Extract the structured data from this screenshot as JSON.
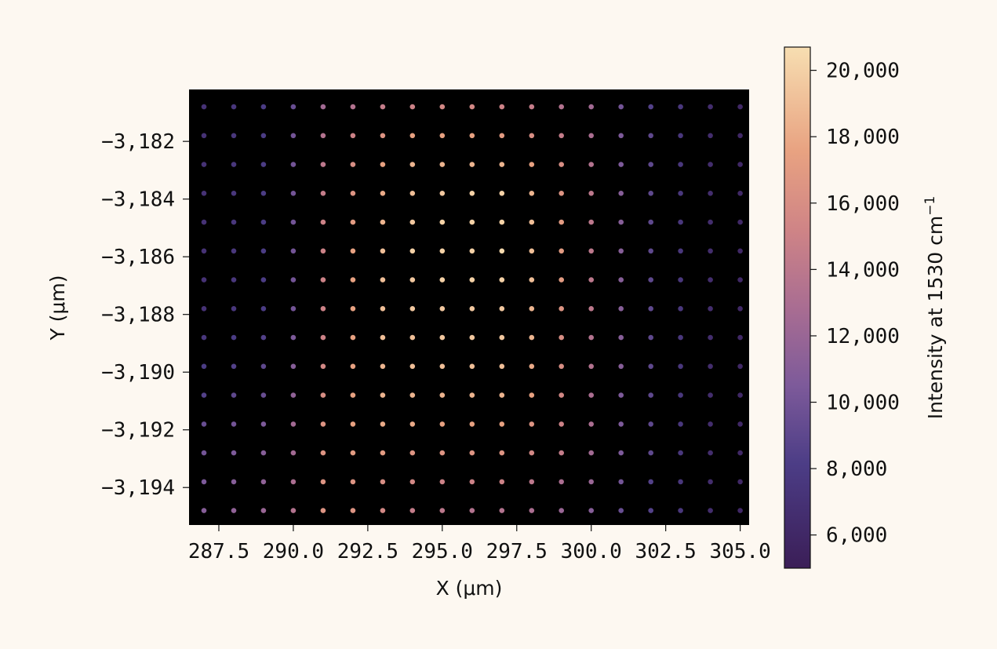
{
  "chart_data": {
    "type": "scatter",
    "title": "",
    "xlabel": "X (μm)",
    "ylabel": "Y (μm)",
    "colorbar_label": "Intensity at 1530 cm",
    "colorbar_label_sup": "−1",
    "colormap": "magma",
    "background": "#000000",
    "xlim": [
      286.5,
      305.3
    ],
    "ylim": [
      -3195.3,
      -3180.2
    ],
    "x_ticks": [
      287.5,
      290.0,
      292.5,
      295.0,
      297.5,
      300.0,
      302.5,
      305.0
    ],
    "x_tick_labels": [
      "287.5",
      "290.0",
      "292.5",
      "295.0",
      "297.5",
      "300.0",
      "302.5",
      "305.0"
    ],
    "y_ticks": [
      -3182,
      -3184,
      -3186,
      -3188,
      -3190,
      -3192,
      -3194
    ],
    "y_tick_labels": [
      "−3,182",
      "−3,184",
      "−3,186",
      "−3,188",
      "−3,190",
      "−3,192",
      "−3,194"
    ],
    "clim": [
      5000,
      20700
    ],
    "colorbar_ticks": [
      6000,
      8000,
      10000,
      12000,
      14000,
      16000,
      18000,
      20000
    ],
    "colorbar_tick_labels": [
      "6,000",
      "8,000",
      "10,000",
      "12,000",
      "14,000",
      "16,000",
      "18,000",
      "20,000"
    ],
    "grid": false,
    "x": [
      287.0,
      288.0,
      289.0,
      290.0,
      291.0,
      292.0,
      293.0,
      294.0,
      295.0,
      296.0,
      297.0,
      298.0,
      299.0,
      300.0,
      301.0,
      302.0,
      303.0,
      304.0,
      305.0
    ],
    "y": [
      -3180.8,
      -3181.8,
      -3182.8,
      -3183.8,
      -3184.8,
      -3185.8,
      -3186.8,
      -3187.8,
      -3188.8,
      -3189.8,
      -3190.8,
      -3191.8,
      -3192.8,
      -3193.8,
      -3194.8
    ],
    "values": [
      [
        7000,
        7500,
        8000,
        9500,
        12500,
        13500,
        14500,
        15000,
        15500,
        15500,
        15000,
        14500,
        13500,
        12500,
        10000,
        8500,
        7500,
        6500,
        6000
      ],
      [
        7000,
        7500,
        8000,
        10000,
        13500,
        15000,
        16500,
        17500,
        17500,
        17500,
        17000,
        16000,
        14500,
        13000,
        10500,
        9000,
        7500,
        6500,
        6000
      ],
      [
        7000,
        7500,
        8000,
        10000,
        14000,
        16000,
        17500,
        18500,
        18500,
        18500,
        18500,
        17500,
        16000,
        13500,
        10500,
        9000,
        7500,
        6500,
        6000
      ],
      [
        7000,
        7500,
        8000,
        10000,
        14500,
        16500,
        18000,
        19000,
        19500,
        20000,
        20000,
        18500,
        16500,
        14000,
        11000,
        9000,
        7500,
        6500,
        6000
      ],
      [
        7000,
        7500,
        8000,
        10000,
        15000,
        17000,
        18500,
        19500,
        20000,
        20000,
        20000,
        19000,
        17000,
        14000,
        11000,
        9000,
        7500,
        6500,
        6000
      ],
      [
        7000,
        7500,
        8000,
        10000,
        15000,
        17500,
        19000,
        20000,
        20000,
        20000,
        20500,
        19000,
        17000,
        14000,
        11000,
        9000,
        7500,
        6500,
        6000
      ],
      [
        7000,
        7500,
        8000,
        10000,
        15000,
        17500,
        19000,
        19500,
        20000,
        20000,
        20000,
        19000,
        17000,
        14000,
        11000,
        9000,
        7500,
        6500,
        6000
      ],
      [
        7000,
        7500,
        8000,
        10000,
        15000,
        17500,
        19000,
        19500,
        19500,
        19500,
        19500,
        18500,
        16500,
        14000,
        11000,
        9000,
        7500,
        6500,
        6000
      ],
      [
        7500,
        8000,
        8500,
        10500,
        15000,
        17500,
        19000,
        19000,
        19500,
        19500,
        19500,
        18500,
        16000,
        13500,
        11000,
        9000,
        7500,
        6500,
        6000
      ],
      [
        8000,
        8500,
        9000,
        11000,
        15500,
        17500,
        18500,
        19000,
        19000,
        19000,
        19000,
        18000,
        16000,
        13500,
        11000,
        9000,
        7500,
        6500,
        6000
      ],
      [
        8500,
        9000,
        9500,
        11500,
        16000,
        17500,
        18500,
        18500,
        18500,
        18500,
        18500,
        17500,
        15500,
        13000,
        10500,
        9000,
        7500,
        6500,
        6000
      ],
      [
        9500,
        10000,
        10500,
        12500,
        16500,
        17500,
        18000,
        18000,
        17500,
        17500,
        17500,
        16500,
        15000,
        13000,
        10500,
        9000,
        7500,
        6500,
        6000
      ],
      [
        10000,
        10500,
        11000,
        12500,
        16500,
        17000,
        17000,
        16500,
        16500,
        16500,
        16500,
        15500,
        14500,
        12500,
        10500,
        9000,
        7500,
        6500,
        6000
      ],
      [
        10500,
        11000,
        11500,
        13000,
        16500,
        16500,
        16000,
        15500,
        15000,
        15000,
        15000,
        14000,
        13000,
        12000,
        10000,
        8500,
        7500,
        6500,
        6000
      ],
      [
        11000,
        11500,
        12000,
        13500,
        16500,
        16500,
        15500,
        14500,
        14000,
        13500,
        13500,
        13000,
        12000,
        11000,
        9500,
        8500,
        7500,
        6500,
        6000
      ]
    ]
  }
}
